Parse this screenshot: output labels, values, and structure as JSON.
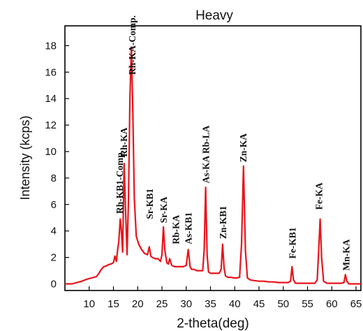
{
  "chart_data": {
    "type": "line",
    "title": "Heavy",
    "xlabel": "2-theta(deg)",
    "ylabel": "Intensity (kcps)",
    "xlim": [
      5,
      66
    ],
    "ylim": [
      -0.5,
      19.5
    ],
    "x_ticks": [
      10,
      15,
      20,
      25,
      30,
      35,
      40,
      45,
      50,
      55,
      60,
      65
    ],
    "y_ticks": [
      0,
      2,
      4,
      6,
      8,
      10,
      12,
      14,
      16,
      18
    ],
    "grid": false,
    "line_color": "#e8141c",
    "series": [
      {
        "x": [
          5.0,
          6.5,
          7.5,
          8.5,
          9.5,
          10.5,
          11.5,
          12.0,
          12.5,
          13.0,
          13.5,
          14.0,
          14.5,
          15.0,
          15.3,
          15.6,
          15.9,
          16.1,
          16.4,
          16.6,
          16.9,
          17.2,
          17.5,
          17.8,
          18.1,
          18.4,
          18.7,
          19.0,
          19.3,
          19.7,
          20.2,
          20.8,
          21.4,
          22.0,
          22.4,
          22.7,
          23.0,
          23.6,
          24.2,
          24.7,
          25.0,
          25.3,
          25.6,
          26.0,
          26.3,
          26.6,
          27.0,
          27.6,
          28.2,
          28.8,
          29.4,
          30.0,
          30.2,
          30.4,
          30.6,
          30.8,
          31.1,
          31.6,
          32.2,
          32.8,
          33.4,
          33.7,
          34.0,
          34.3,
          34.6,
          35.0,
          35.6,
          36.2,
          36.8,
          37.2,
          37.5,
          37.8,
          38.1,
          38.6,
          39.2,
          39.8,
          40.4,
          41.0,
          41.4,
          41.8,
          42.2,
          42.6,
          43.2,
          44.0,
          45.0,
          46.0,
          47.0,
          48.0,
          49.0,
          50.0,
          51.0,
          51.5,
          51.8,
          52.1,
          52.5,
          53.5,
          54.5,
          55.5,
          56.5,
          57.0,
          57.3,
          57.6,
          57.9,
          58.3,
          59.0,
          60.0,
          61.0,
          62.0,
          62.5,
          62.8,
          63.1,
          63.5,
          64.5,
          66.0
        ],
        "y": [
          0.0,
          0.0,
          0.1,
          0.2,
          0.35,
          0.45,
          0.55,
          0.8,
          1.1,
          1.3,
          1.35,
          1.45,
          1.5,
          1.6,
          2.1,
          1.7,
          2.7,
          3.2,
          4.9,
          4.2,
          2.4,
          9.1,
          5.5,
          2.2,
          6.5,
          14.0,
          17.9,
          13.0,
          6.5,
          3.6,
          3.0,
          2.6,
          2.3,
          2.2,
          2.8,
          2.1,
          2.0,
          1.9,
          1.9,
          1.7,
          2.2,
          4.3,
          2.5,
          1.6,
          1.5,
          1.9,
          1.4,
          1.3,
          1.3,
          1.3,
          1.3,
          1.4,
          2.0,
          2.6,
          2.0,
          1.3,
          1.1,
          1.1,
          1.0,
          1.0,
          1.0,
          2.6,
          7.3,
          2.2,
          0.9,
          0.8,
          0.8,
          0.8,
          0.8,
          1.1,
          3.0,
          1.2,
          0.6,
          0.5,
          0.5,
          0.45,
          0.45,
          0.5,
          3.0,
          8.9,
          2.5,
          0.45,
          0.3,
          0.25,
          0.2,
          0.2,
          0.15,
          0.15,
          0.1,
          0.1,
          0.1,
          0.2,
          1.3,
          0.3,
          0.05,
          0.05,
          0.05,
          0.05,
          0.05,
          0.3,
          2.5,
          4.9,
          2.0,
          0.2,
          0.05,
          0.05,
          0.05,
          0.05,
          0.1,
          0.7,
          0.2,
          0.0,
          0.0,
          0.0
        ]
      }
    ],
    "annotations": [
      {
        "text": "Rh-KB1-Comp.",
        "x": 16.2,
        "y": 5.3
      },
      {
        "text": "Rh-KA",
        "x": 17.1,
        "y": 9.6
      },
      {
        "text": "Rh-KA-Comp.",
        "x": 18.8,
        "y": 15.8
      },
      {
        "text": "Sr-KB1",
        "x": 22.4,
        "y": 4.9
      },
      {
        "text": "Sr-KA",
        "x": 25.3,
        "y": 4.6
      },
      {
        "text": "Rb-KA",
        "x": 27.8,
        "y": 3.0
      },
      {
        "text": "As-KB1",
        "x": 30.4,
        "y": 3.0
      },
      {
        "text": "As-KA Rb-LA",
        "x": 34.0,
        "y": 7.6
      },
      {
        "text": "Zn-KB1",
        "x": 37.5,
        "y": 3.4
      },
      {
        "text": "Zn-KA",
        "x": 41.7,
        "y": 9.2
      },
      {
        "text": "Fe-KB1",
        "x": 51.8,
        "y": 1.9
      },
      {
        "text": "Fe-KA",
        "x": 57.3,
        "y": 5.6
      },
      {
        "text": "Mn-KA",
        "x": 62.9,
        "y": 1.0
      }
    ]
  }
}
